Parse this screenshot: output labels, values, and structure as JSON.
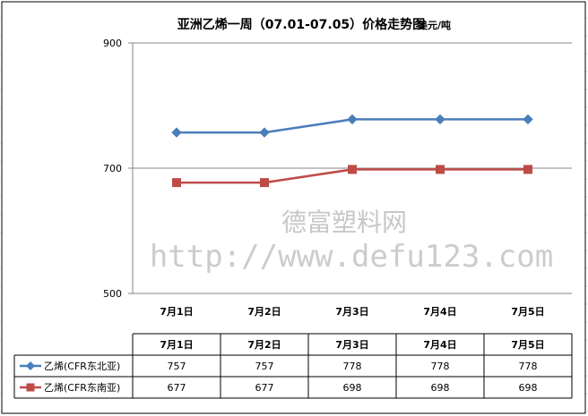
{
  "watermark": {
    "line1": "德富塑料网",
    "line2": "http://www.defu123.com"
  },
  "colors": {
    "series1": "#4a7ebb",
    "series2": "#be4b48",
    "grid": "#868686",
    "frame": "#000000"
  },
  "chart_data": {
    "type": "line",
    "title": "亚洲乙烯一周（07.01-07.05）价格走势图",
    "unit": "美元/吨",
    "categories": [
      "7月1日",
      "7月2日",
      "7月3日",
      "7月4日",
      "7月5日"
    ],
    "ylim": [
      500,
      900
    ],
    "yticks": [
      500,
      700,
      900
    ],
    "grid": true,
    "legend": "data-table",
    "series": [
      {
        "name": "乙烯(CFR东北亚)",
        "values": [
          757,
          757,
          778,
          778,
          778
        ],
        "color": "#4a7ebb",
        "marker": "diamond"
      },
      {
        "name": "乙烯(CFR东南亚)",
        "values": [
          677,
          677,
          698,
          698,
          698
        ],
        "color": "#be4b48",
        "marker": "square"
      }
    ]
  }
}
